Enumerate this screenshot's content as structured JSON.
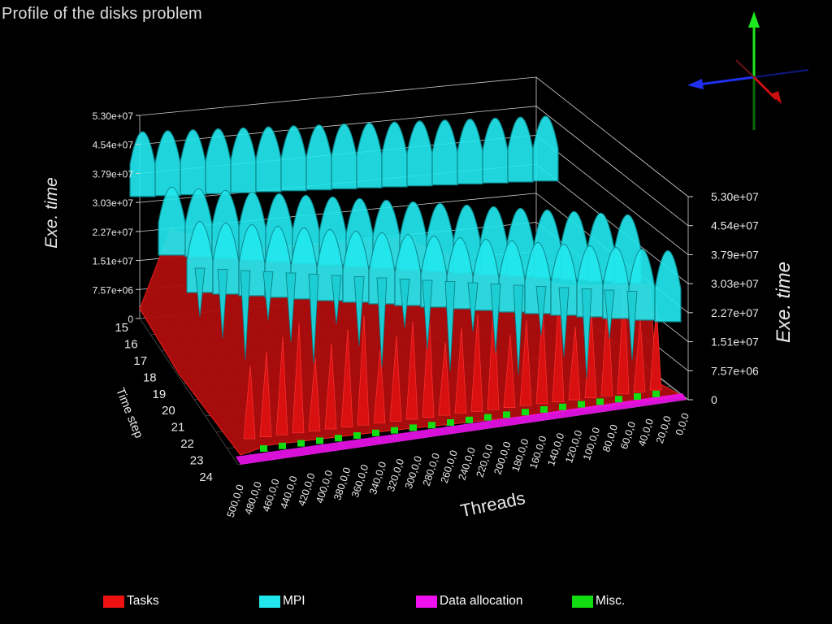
{
  "chart_data": {
    "type": "surface-3d",
    "title": "Profile of the disks problem",
    "zlabel": "Exe. time",
    "ylabel": "Time step",
    "xlabel": "Threads",
    "z_ticks": [
      "0",
      "7.57e+06",
      "1.51e+07",
      "2.27e+07",
      "3.03e+07",
      "3.79e+07",
      "4.54e+07",
      "5.30e+07"
    ],
    "zlim": [
      0,
      53000000
    ],
    "time_steps": [
      "15",
      "16",
      "17",
      "18",
      "19",
      "20",
      "21",
      "22",
      "23",
      "24"
    ],
    "thread_ticks": [
      "500,0,0",
      "480,0,0",
      "460,0,0",
      "440,0,0",
      "420,0,0",
      "400,0,0",
      "380,0,0",
      "360,0,0",
      "340,0,0",
      "320,0,0",
      "300,0,0",
      "280,0,0",
      "260,0,0",
      "240,0,0",
      "220,0,0",
      "200,0,0",
      "180,0,0",
      "160,0,0",
      "140,0,0",
      "120,0,0",
      "100,0,0",
      "80,0,0",
      "60,0,0",
      "40,0,0",
      "20,0,0",
      "0,0,0"
    ],
    "series": [
      {
        "name": "Tasks",
        "color": "#ee1111"
      },
      {
        "name": "MPI",
        "color": "#22e8ee"
      },
      {
        "name": "Data allocation",
        "color": "#ee11ee"
      },
      {
        "name": "Misc.",
        "color": "#11dd11"
      }
    ],
    "grid": true,
    "legend_position": "bottom"
  }
}
